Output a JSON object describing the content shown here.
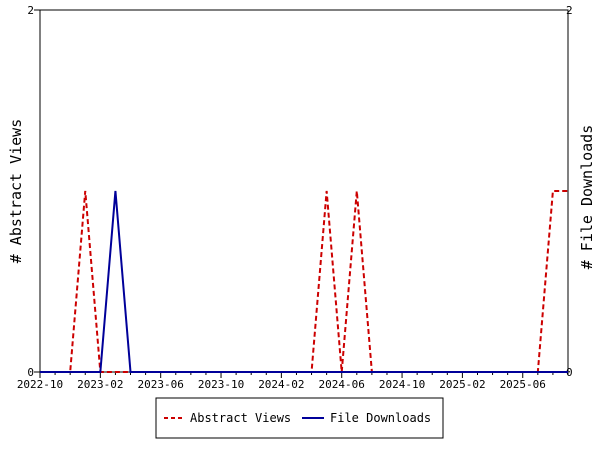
{
  "chart_data": {
    "type": "line",
    "ylabel_left": "# Abstract Views",
    "ylabel_right": "# File Downloads",
    "y_left_ticks": [
      "0",
      "2"
    ],
    "y_right_ticks": [
      "0",
      "2"
    ],
    "ylim": [
      0,
      2
    ],
    "x_axis": {
      "start": "2022-10",
      "end": "2025-09",
      "tick_labels": [
        "2022-10",
        "2023-02",
        "2023-06",
        "2023-10",
        "2024-02",
        "2024-06",
        "2024-10",
        "2025-02",
        "2025-06"
      ]
    },
    "x": [
      "2022-10",
      "2022-11",
      "2022-12",
      "2023-01",
      "2023-02",
      "2023-03",
      "2023-04",
      "2023-05",
      "2023-06",
      "2023-07",
      "2023-08",
      "2023-09",
      "2023-10",
      "2023-11",
      "2023-12",
      "2024-01",
      "2024-02",
      "2024-03",
      "2024-04",
      "2024-05",
      "2024-06",
      "2024-07",
      "2024-08",
      "2024-09",
      "2024-10",
      "2024-11",
      "2024-12",
      "2025-01",
      "2025-02",
      "2025-03",
      "2025-04",
      "2025-05",
      "2025-06",
      "2025-07",
      "2025-08",
      "2025-09"
    ],
    "series": [
      {
        "name": "Abstract Views",
        "color": "#cc0000",
        "dash": "dashed",
        "values": [
          0,
          0,
          0,
          1,
          0,
          0,
          0,
          0,
          0,
          0,
          0,
          0,
          0,
          0,
          0,
          0,
          0,
          0,
          0,
          1,
          0,
          1,
          0,
          0,
          0,
          0,
          0,
          0,
          0,
          0,
          0,
          0,
          0,
          0,
          1,
          1
        ]
      },
      {
        "name": "File Downloads",
        "color": "#000099",
        "dash": "solid",
        "values": [
          0,
          0,
          0,
          0,
          0,
          1,
          0,
          0,
          0,
          0,
          0,
          0,
          0,
          0,
          0,
          0,
          0,
          0,
          0,
          0,
          0,
          0,
          0,
          0,
          0,
          0,
          0,
          0,
          0,
          0,
          0,
          0,
          0,
          0,
          0,
          0
        ]
      }
    ],
    "legend": {
      "position": "bottom",
      "entries": [
        "Abstract Views",
        "File Downloads"
      ]
    },
    "grid": false
  }
}
